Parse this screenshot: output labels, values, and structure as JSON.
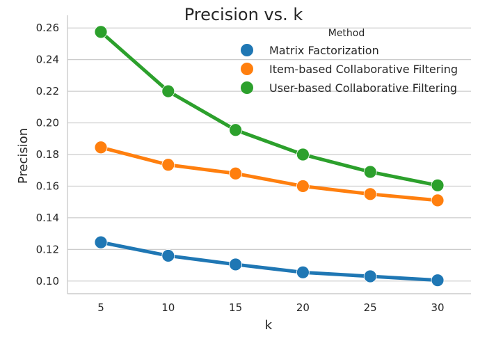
{
  "chart_data": {
    "type": "line",
    "title": "Precision vs. k",
    "xlabel": "k",
    "ylabel": "Precision",
    "categories": [
      "5",
      "10",
      "15",
      "20",
      "25",
      "30"
    ],
    "ylim": [
      0.092,
      0.268
    ],
    "yticks": [
      "0.10",
      "0.12",
      "0.14",
      "0.16",
      "0.18",
      "0.20",
      "0.22",
      "0.24",
      "0.26"
    ],
    "grid": "horizontal",
    "legend": {
      "title": "Method",
      "placement": "top-right"
    },
    "series": [
      {
        "name": "Matrix Factorization",
        "color": "#1f77b4",
        "values": [
          0.1245,
          0.116,
          0.1105,
          0.1055,
          0.103,
          0.1005
        ]
      },
      {
        "name": "Item-based Collaborative Filtering",
        "color": "#ff7f0e",
        "values": [
          0.1845,
          0.1735,
          0.168,
          0.16,
          0.155,
          0.151
        ]
      },
      {
        "name": "User-based Collaborative Filtering",
        "color": "#2ca02c",
        "values": [
          0.2575,
          0.22,
          0.1955,
          0.18,
          0.169,
          0.1605
        ]
      }
    ]
  }
}
